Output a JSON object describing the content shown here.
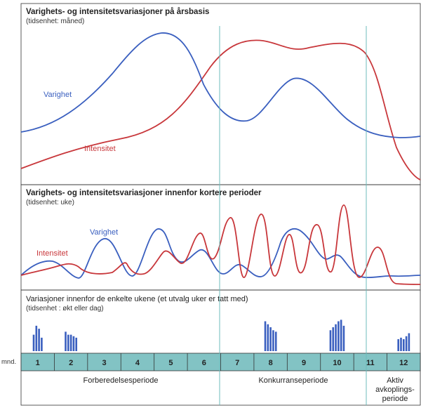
{
  "colors": {
    "duration": "#3a5fbf",
    "intensity": "#c8373b",
    "month_bar_fill": "#82c3c4",
    "divider": "#6cbcbc",
    "frame": "#333333",
    "weekly_bar": "#3a5fbf"
  },
  "panels": [
    {
      "title": "Varighets- og intensitetsvariasjoner på årsbasis",
      "subtitle": "(tidsenhet: måned)"
    },
    {
      "title": "Varighets- og intensitetsvariasjoner innenfor kortere perioder",
      "subtitle": "(tidsenhet: uke)"
    },
    {
      "title": "Variasjoner innenfor de enkelte ukene (et utvalg uker er tatt med)",
      "subtitle": "(tidsenhet : økt eller dag)"
    }
  ],
  "curve_labels": {
    "panel1": {
      "duration": "Varighet",
      "intensity": "Intensitet"
    },
    "panel2": {
      "duration": "Varighet",
      "intensity": "Intensitet"
    }
  },
  "month_axis": {
    "label": "mnd.",
    "months": [
      "1",
      "2",
      "3",
      "4",
      "5",
      "6",
      "7",
      "8",
      "9",
      "10",
      "11",
      "12"
    ]
  },
  "periods": [
    {
      "name": "Forberedelsesperiode",
      "months": [
        1,
        6
      ]
    },
    {
      "name": "Konkurranseperiode",
      "months": [
        7,
        10
      ]
    },
    {
      "name": "Aktiv avkoplings-periode",
      "lines": [
        "Aktiv",
        "avkoplings-",
        "periode"
      ],
      "months": [
        11,
        12
      ]
    }
  ],
  "weekly_samples": [
    {
      "month": 1,
      "bars": [
        0.55,
        0.85,
        0.75,
        0.45
      ]
    },
    {
      "month": 2,
      "bars": [
        0.65,
        0.55,
        0.55,
        0.5,
        0.45
      ]
    },
    {
      "month": 8,
      "bars": [
        1.0,
        0.9,
        0.8,
        0.7,
        0.65
      ]
    },
    {
      "month": 10,
      "bars": [
        0.7,
        0.8,
        0.9,
        1.0,
        1.05,
        0.85
      ]
    },
    {
      "month": 12,
      "bars": [
        0.4,
        0.45,
        0.4,
        0.5,
        0.6
      ]
    }
  ],
  "dividers": [
    "between month 6 and 7",
    "between month 10 and 11"
  ]
}
